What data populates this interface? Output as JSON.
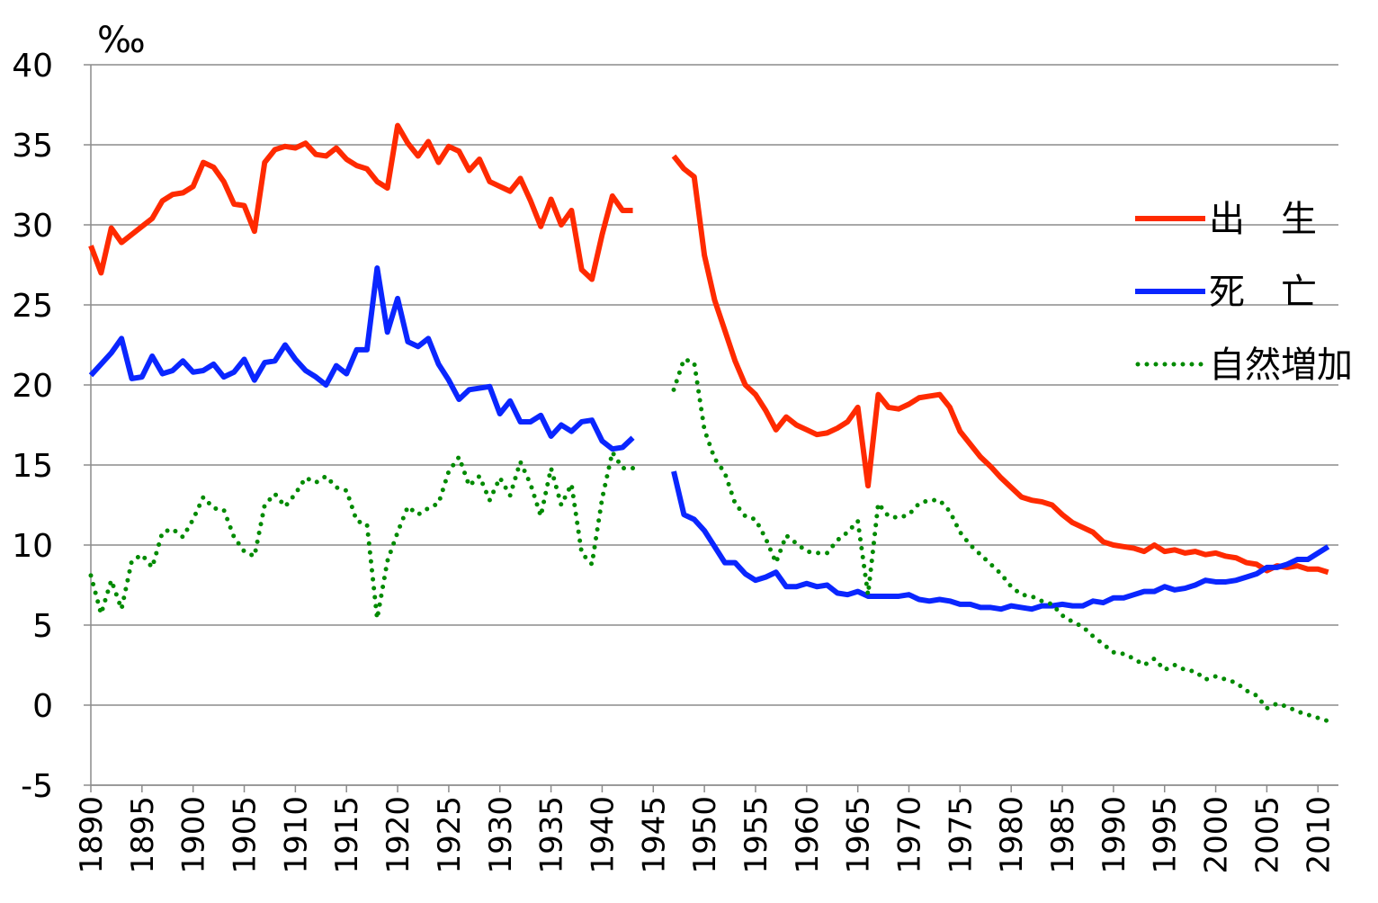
{
  "chart_data": {
    "type": "line",
    "y_label": "‰",
    "x": [
      1890,
      1891,
      1892,
      1893,
      1894,
      1895,
      1896,
      1897,
      1898,
      1899,
      1900,
      1901,
      1902,
      1903,
      1904,
      1905,
      1906,
      1907,
      1908,
      1909,
      1910,
      1911,
      1912,
      1913,
      1914,
      1915,
      1916,
      1917,
      1918,
      1919,
      1920,
      1921,
      1922,
      1923,
      1924,
      1925,
      1926,
      1927,
      1928,
      1929,
      1930,
      1931,
      1932,
      1933,
      1934,
      1935,
      1936,
      1937,
      1938,
      1939,
      1940,
      1941,
      1942,
      1943,
      1944,
      1945,
      1946,
      1947,
      1948,
      1949,
      1950,
      1951,
      1952,
      1953,
      1954,
      1955,
      1956,
      1957,
      1958,
      1959,
      1960,
      1961,
      1962,
      1963,
      1964,
      1965,
      1966,
      1967,
      1968,
      1969,
      1970,
      1971,
      1972,
      1973,
      1974,
      1975,
      1976,
      1977,
      1978,
      1979,
      1980,
      1981,
      1982,
      1983,
      1984,
      1985,
      1986,
      1987,
      1988,
      1989,
      1990,
      1991,
      1992,
      1993,
      1994,
      1995,
      1996,
      1997,
      1998,
      1999,
      2000,
      2001,
      2002,
      2003,
      2004,
      2005,
      2006,
      2007,
      2008,
      2009,
      2010,
      2011
    ],
    "series": [
      {
        "name": "出　生",
        "color": "#ff2a00",
        "style": "solid",
        "values": [
          28.7,
          27.0,
          29.8,
          28.9,
          29.4,
          29.9,
          30.4,
          31.5,
          31.9,
          32.0,
          32.4,
          33.9,
          33.6,
          32.7,
          31.3,
          31.2,
          29.6,
          33.9,
          34.7,
          34.9,
          34.8,
          35.1,
          34.4,
          34.3,
          34.8,
          34.1,
          33.7,
          33.5,
          32.7,
          32.3,
          36.2,
          35.1,
          34.3,
          35.2,
          33.9,
          34.9,
          34.6,
          33.4,
          34.1,
          32.7,
          32.4,
          32.1,
          32.9,
          31.5,
          29.9,
          31.6,
          30.0,
          30.9,
          27.2,
          26.6,
          29.4,
          31.8,
          30.9,
          30.9,
          null,
          null,
          null,
          34.3,
          33.5,
          33.0,
          28.1,
          25.3,
          23.4,
          21.5,
          20.0,
          19.4,
          18.4,
          17.2,
          18.0,
          17.5,
          17.2,
          16.9,
          17.0,
          17.3,
          17.7,
          18.6,
          13.7,
          19.4,
          18.6,
          18.5,
          18.8,
          19.2,
          19.3,
          19.4,
          18.6,
          17.1,
          16.3,
          15.5,
          14.9,
          14.2,
          13.6,
          13.0,
          12.8,
          12.7,
          12.5,
          11.9,
          11.4,
          11.1,
          10.8,
          10.2,
          10.0,
          9.9,
          9.8,
          9.6,
          10.0,
          9.6,
          9.7,
          9.5,
          9.6,
          9.4,
          9.5,
          9.3,
          9.2,
          8.9,
          8.8,
          8.4,
          8.7,
          8.6,
          8.7,
          8.5,
          8.5,
          8.3
        ]
      },
      {
        "name": "死　亡",
        "color": "#0a26ff",
        "style": "solid",
        "values": [
          20.6,
          21.3,
          22.0,
          22.9,
          20.4,
          20.5,
          21.8,
          20.7,
          20.9,
          21.5,
          20.8,
          20.9,
          21.3,
          20.5,
          20.8,
          21.6,
          20.3,
          21.4,
          21.5,
          22.5,
          21.6,
          20.9,
          20.5,
          20.0,
          21.2,
          20.7,
          22.2,
          22.2,
          27.3,
          23.3,
          25.4,
          22.7,
          22.4,
          22.9,
          21.3,
          20.3,
          19.1,
          19.7,
          19.8,
          19.9,
          18.2,
          19.0,
          17.7,
          17.7,
          18.1,
          16.8,
          17.5,
          17.1,
          17.7,
          17.8,
          16.5,
          16.0,
          16.1,
          16.7,
          null,
          null,
          null,
          14.6,
          11.9,
          11.6,
          10.9,
          9.9,
          8.9,
          8.9,
          8.2,
          7.8,
          8.0,
          8.3,
          7.4,
          7.4,
          7.6,
          7.4,
          7.5,
          7.0,
          6.9,
          7.1,
          6.8,
          6.8,
          6.8,
          6.8,
          6.9,
          6.6,
          6.5,
          6.6,
          6.5,
          6.3,
          6.3,
          6.1,
          6.1,
          6.0,
          6.2,
          6.1,
          6.0,
          6.2,
          6.2,
          6.3,
          6.2,
          6.2,
          6.5,
          6.4,
          6.7,
          6.7,
          6.9,
          7.1,
          7.1,
          7.4,
          7.2,
          7.3,
          7.5,
          7.8,
          7.7,
          7.7,
          7.8,
          8.0,
          8.2,
          8.6,
          8.6,
          8.8,
          9.1,
          9.1,
          9.5,
          9.9
        ]
      },
      {
        "name": "自然増加",
        "color": "#008a00",
        "style": "dotted",
        "values": [
          8.1,
          5.7,
          7.8,
          6.0,
          9.0,
          9.4,
          8.6,
          10.8,
          11.0,
          10.5,
          11.6,
          13.0,
          12.3,
          12.2,
          10.5,
          9.6,
          9.3,
          12.5,
          13.2,
          12.4,
          13.2,
          14.2,
          13.9,
          14.3,
          13.6,
          13.4,
          11.5,
          11.3,
          5.4,
          9.0,
          10.8,
          12.4,
          11.9,
          12.3,
          12.6,
          14.6,
          15.5,
          13.7,
          14.3,
          12.8,
          14.2,
          13.1,
          15.2,
          13.8,
          11.8,
          14.8,
          12.5,
          13.8,
          9.5,
          8.8,
          12.9,
          15.8,
          14.8,
          14.8,
          null,
          null,
          null,
          19.7,
          21.6,
          21.4,
          17.2,
          15.4,
          14.5,
          12.6,
          11.8,
          11.6,
          10.4,
          8.9,
          10.6,
          10.1,
          9.6,
          9.5,
          9.5,
          10.3,
          10.8,
          11.5,
          6.9,
          12.6,
          11.8,
          11.7,
          11.9,
          12.6,
          12.8,
          12.8,
          12.1,
          10.8,
          10.0,
          9.4,
          8.8,
          8.2,
          7.4,
          6.9,
          6.8,
          6.5,
          6.3,
          5.6,
          5.2,
          4.9,
          4.3,
          3.8,
          3.3,
          3.2,
          2.9,
          2.5,
          2.9,
          2.2,
          2.5,
          2.2,
          2.1,
          1.6,
          1.8,
          1.6,
          1.4,
          0.9,
          0.6,
          -0.2,
          0.1,
          -0.1,
          -0.4,
          -0.6,
          -0.8,
          -1.0
        ]
      }
    ],
    "xlim": [
      1890,
      2012
    ],
    "xticks": [
      1890,
      1895,
      1900,
      1905,
      1910,
      1915,
      1920,
      1925,
      1930,
      1935,
      1940,
      1945,
      1950,
      1955,
      1960,
      1965,
      1970,
      1975,
      1980,
      1985,
      1990,
      1995,
      2000,
      2005,
      2010
    ],
    "ylim": [
      -5,
      40
    ],
    "yticks": [
      -5,
      0,
      5,
      10,
      15,
      20,
      25,
      30,
      35,
      40
    ],
    "grid": true,
    "legend": "right"
  }
}
